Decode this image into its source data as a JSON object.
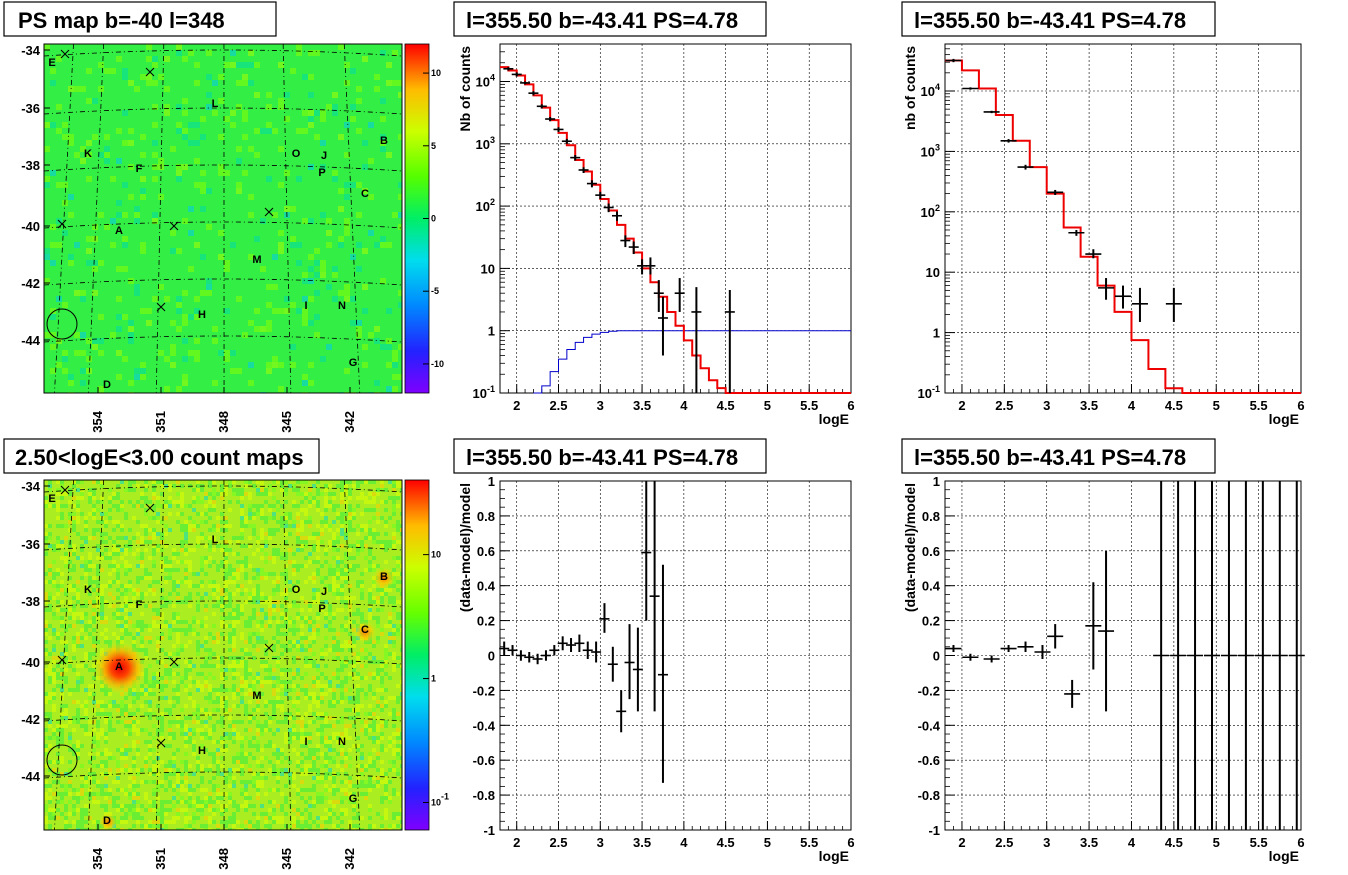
{
  "chart_data": [
    {
      "panel": "ps-map",
      "type": "heatmap",
      "title": "PS map b=-40 l=348",
      "x_ticks": [
        "354",
        "351",
        "348",
        "345",
        "342"
      ],
      "y_ticks": [
        "-34",
        "-36",
        "-38",
        "-40",
        "-42",
        "-44"
      ],
      "colorbar_ticks": [
        "10",
        "5",
        "0",
        "-5",
        "-10"
      ],
      "colorbar_values": [
        10,
        5,
        0,
        -5,
        -10
      ],
      "zlim": [
        -12,
        12
      ],
      "sources": [
        "E",
        "L",
        "K",
        "F",
        "O",
        "J",
        "B",
        "P",
        "C",
        "A",
        "M",
        "I",
        "N",
        "H",
        "G",
        "D"
      ],
      "crosses": 6,
      "circle": true
    },
    {
      "panel": "spectrum-left",
      "type": "line",
      "title": "l=355.50 b=-43.41 PS=4.78",
      "xlabel": "logE",
      "ylabel": "Nb of counts",
      "xlim": [
        1.8,
        6
      ],
      "ylim": [
        0.1,
        40000
      ],
      "yscale": "log",
      "x_ticks": [
        "2",
        "2.5",
        "3",
        "3.5",
        "4",
        "4.5",
        "5",
        "5.5",
        "6"
      ],
      "y_ticks": [
        "10^-1",
        "1",
        "10",
        "10^2",
        "10^3",
        "10^4"
      ],
      "grid": true,
      "data_points": [
        {
          "x": 1.9,
          "y": 16000,
          "lo": 15000,
          "hi": 17000
        },
        {
          "x": 2.0,
          "y": 13000,
          "lo": 12000,
          "hi": 14000
        },
        {
          "x": 2.1,
          "y": 9500,
          "lo": 9000,
          "hi": 10000
        },
        {
          "x": 2.2,
          "y": 6500,
          "lo": 6000,
          "hi": 7000
        },
        {
          "x": 2.3,
          "y": 4000,
          "lo": 3700,
          "hi": 4300
        },
        {
          "x": 2.4,
          "y": 2500,
          "lo": 2300,
          "hi": 2700
        },
        {
          "x": 2.5,
          "y": 1700,
          "lo": 1550,
          "hi": 1850
        },
        {
          "x": 2.6,
          "y": 1100,
          "lo": 1000,
          "hi": 1200
        },
        {
          "x": 2.7,
          "y": 600,
          "lo": 540,
          "hi": 660
        },
        {
          "x": 2.8,
          "y": 380,
          "lo": 340,
          "hi": 420
        },
        {
          "x": 2.9,
          "y": 230,
          "lo": 200,
          "hi": 260
        },
        {
          "x": 3.0,
          "y": 150,
          "lo": 130,
          "hi": 170
        },
        {
          "x": 3.1,
          "y": 95,
          "lo": 80,
          "hi": 110
        },
        {
          "x": 3.2,
          "y": 70,
          "lo": 58,
          "hi": 82
        },
        {
          "x": 3.3,
          "y": 28,
          "lo": 22,
          "hi": 34
        },
        {
          "x": 3.4,
          "y": 22,
          "lo": 17,
          "hi": 27
        },
        {
          "x": 3.5,
          "y": 11,
          "lo": 8,
          "hi": 14
        },
        {
          "x": 3.6,
          "y": 11,
          "lo": 8,
          "hi": 15
        },
        {
          "x": 3.7,
          "y": 4,
          "lo": 2,
          "hi": 6.5
        },
        {
          "x": 3.75,
          "y": 1.6,
          "lo": 0.4,
          "hi": 3.5
        },
        {
          "x": 3.95,
          "y": 4,
          "lo": 2,
          "hi": 7
        },
        {
          "x": 4.15,
          "y": 2,
          "lo": 0.1,
          "hi": 5
        },
        {
          "x": 4.55,
          "y": 2,
          "lo": 0.1,
          "hi": 4.5
        }
      ],
      "series": [
        {
          "x": [
            1.8,
            1.9,
            2.0,
            2.1,
            2.2,
            2.3,
            2.4,
            2.5,
            2.6,
            2.7,
            2.8,
            2.9,
            3.0,
            3.1,
            3.2,
            3.3,
            3.4,
            3.5,
            3.6,
            3.7,
            3.8,
            3.9,
            4.0,
            4.1,
            4.2,
            4.3,
            4.4,
            4.5,
            4.6,
            5.0,
            6.0
          ],
          "y": [
            17000,
            15000,
            12500,
            9000,
            6000,
            3800,
            2400,
            1500,
            950,
            550,
            360,
            220,
            130,
            85,
            50,
            30,
            18,
            10,
            6,
            3.5,
            2,
            1.2,
            0.7,
            0.4,
            0.25,
            0.16,
            0.12,
            0.1,
            0.1,
            0.1,
            0.1
          ]
        },
        {
          "x": [
            2.2,
            2.3,
            2.4,
            2.5,
            2.6,
            2.7,
            2.8,
            2.9,
            3.0,
            3.1,
            3.2,
            3.5,
            6.0
          ],
          "y": [
            0.1,
            0.13,
            0.22,
            0.35,
            0.5,
            0.65,
            0.78,
            0.88,
            0.94,
            0.98,
            1,
            1,
            1
          ]
        }
      ]
    },
    {
      "panel": "spectrum-right",
      "type": "line",
      "title": "l=355.50 b=-43.41 PS=4.78",
      "xlabel": "logE",
      "ylabel": "nb of counts",
      "xlim": [
        1.8,
        6
      ],
      "ylim": [
        0.1,
        60000
      ],
      "yscale": "log",
      "x_ticks": [
        "2",
        "2.5",
        "3",
        "3.5",
        "4",
        "4.5",
        "5",
        "5.5",
        "6"
      ],
      "y_ticks": [
        "10^-1",
        "1",
        "10",
        "10^2",
        "10^3",
        "10^4"
      ],
      "grid": true,
      "data_points": [
        {
          "x": 1.9,
          "y": 32000,
          "lo": 30000,
          "hi": 34000
        },
        {
          "x": 2.1,
          "y": 11000,
          "lo": 10500,
          "hi": 11500
        },
        {
          "x": 2.35,
          "y": 4500,
          "lo": 4300,
          "hi": 4700
        },
        {
          "x": 2.55,
          "y": 1500,
          "lo": 1400,
          "hi": 1600
        },
        {
          "x": 2.75,
          "y": 550,
          "lo": 500,
          "hi": 600
        },
        {
          "x": 3.1,
          "y": 210,
          "lo": 190,
          "hi": 230
        },
        {
          "x": 3.35,
          "y": 45,
          "lo": 40,
          "hi": 50
        },
        {
          "x": 3.55,
          "y": 20,
          "lo": 17,
          "hi": 24
        },
        {
          "x": 3.7,
          "y": 5.5,
          "lo": 3.5,
          "hi": 8
        },
        {
          "x": 3.9,
          "y": 4,
          "lo": 2.5,
          "hi": 6
        },
        {
          "x": 4.1,
          "y": 3,
          "lo": 1.5,
          "hi": 5.5
        },
        {
          "x": 4.5,
          "y": 3,
          "lo": 1.5,
          "hi": 5.5
        }
      ],
      "series": [
        {
          "x": [
            1.8,
            2.0,
            2.2,
            2.4,
            2.6,
            2.8,
            3.0,
            3.2,
            3.4,
            3.6,
            3.8,
            4.0,
            4.2,
            4.4,
            4.6,
            6.0
          ],
          "y": [
            32000,
            22000,
            11000,
            4000,
            1500,
            550,
            200,
            55,
            18,
            6,
            2.2,
            0.75,
            0.25,
            0.12,
            0.1,
            0.1
          ]
        }
      ]
    },
    {
      "panel": "count-map",
      "type": "heatmap",
      "title": "2.50<logE<3.00 count maps",
      "x_ticks": [
        "354",
        "351",
        "348",
        "345",
        "342"
      ],
      "y_ticks": [
        "-34",
        "-36",
        "-38",
        "-40",
        "-42",
        "-44"
      ],
      "colorbar_ticks": [
        "10",
        "1",
        "10^-1"
      ],
      "colorbar_values": [
        10,
        1,
        0.1
      ],
      "zscale": "log",
      "zlim": [
        0.06,
        40
      ],
      "sources": [
        "E",
        "L",
        "K",
        "F",
        "O",
        "J",
        "B",
        "P",
        "C",
        "A",
        "M",
        "I",
        "N",
        "H",
        "G",
        "D"
      ],
      "crosses": 6,
      "circle": true
    },
    {
      "panel": "residual-left",
      "type": "scatter",
      "title": "l=355.50 b=-43.41 PS=4.78",
      "xlabel": "logE",
      "ylabel": "(data-model)/model",
      "xlim": [
        1.8,
        6
      ],
      "ylim": [
        -1,
        1
      ],
      "x_ticks": [
        "2",
        "2.5",
        "3",
        "3.5",
        "4",
        "4.5",
        "5",
        "5.5",
        "6"
      ],
      "y_ticks": [
        "-1",
        "-0.8",
        "-0.6",
        "-0.4",
        "-0.2",
        "0",
        "0.2",
        "0.4",
        "0.6",
        "0.8",
        "1"
      ],
      "grid": true,
      "data_points": [
        {
          "x": 1.85,
          "y": 0.04,
          "lo": 0.0,
          "hi": 0.08
        },
        {
          "x": 1.95,
          "y": 0.03,
          "lo": 0.0,
          "hi": 0.06
        },
        {
          "x": 2.05,
          "y": 0.0,
          "lo": -0.03,
          "hi": 0.03
        },
        {
          "x": 2.15,
          "y": -0.01,
          "lo": -0.04,
          "hi": 0.02
        },
        {
          "x": 2.25,
          "y": -0.02,
          "lo": -0.05,
          "hi": 0.01
        },
        {
          "x": 2.35,
          "y": 0.0,
          "lo": -0.03,
          "hi": 0.03
        },
        {
          "x": 2.45,
          "y": 0.03,
          "lo": 0.0,
          "hi": 0.06
        },
        {
          "x": 2.55,
          "y": 0.07,
          "lo": 0.03,
          "hi": 0.11
        },
        {
          "x": 2.65,
          "y": 0.06,
          "lo": 0.02,
          "hi": 0.1
        },
        {
          "x": 2.75,
          "y": 0.07,
          "lo": 0.02,
          "hi": 0.12
        },
        {
          "x": 2.85,
          "y": 0.03,
          "lo": -0.02,
          "hi": 0.08
        },
        {
          "x": 2.95,
          "y": 0.02,
          "lo": -0.04,
          "hi": 0.08
        },
        {
          "x": 3.05,
          "y": 0.21,
          "lo": 0.13,
          "hi": 0.3
        },
        {
          "x": 3.15,
          "y": -0.05,
          "lo": -0.15,
          "hi": 0.05
        },
        {
          "x": 3.25,
          "y": -0.32,
          "lo": -0.44,
          "hi": -0.2
        },
        {
          "x": 3.35,
          "y": -0.04,
          "lo": -0.25,
          "hi": 0.18
        },
        {
          "x": 3.45,
          "y": -0.08,
          "lo": -0.32,
          "hi": 0.16
        },
        {
          "x": 3.55,
          "y": 0.59,
          "lo": 0.2,
          "hi": 1.0
        },
        {
          "x": 3.65,
          "y": 0.34,
          "lo": -0.32,
          "hi": 1.0
        },
        {
          "x": 3.75,
          "y": -0.11,
          "lo": -0.73,
          "hi": 0.52
        }
      ]
    },
    {
      "panel": "residual-right",
      "type": "scatter",
      "title": "l=355.50 b=-43.41 PS=4.78",
      "xlabel": "logE",
      "ylabel": "(data-model)/model",
      "xlim": [
        1.8,
        6
      ],
      "ylim": [
        -1,
        1
      ],
      "x_ticks": [
        "2",
        "2.5",
        "3",
        "3.5",
        "4",
        "4.5",
        "5",
        "5.5",
        "6"
      ],
      "y_ticks": [
        "-1",
        "-0.8",
        "-0.6",
        "-0.4",
        "-0.2",
        "0",
        "0.2",
        "0.4",
        "0.6",
        "0.8",
        "1"
      ],
      "grid": true,
      "data_points": [
        {
          "x": 1.9,
          "y": 0.04,
          "lo": 0.02,
          "hi": 0.06
        },
        {
          "x": 2.1,
          "y": -0.01,
          "lo": -0.03,
          "hi": 0.01
        },
        {
          "x": 2.35,
          "y": -0.02,
          "lo": -0.04,
          "hi": 0.0
        },
        {
          "x": 2.55,
          "y": 0.04,
          "lo": 0.02,
          "hi": 0.06
        },
        {
          "x": 2.75,
          "y": 0.05,
          "lo": 0.02,
          "hi": 0.08
        },
        {
          "x": 2.95,
          "y": 0.02,
          "lo": -0.02,
          "hi": 0.06
        },
        {
          "x": 3.1,
          "y": 0.11,
          "lo": 0.04,
          "hi": 0.18
        },
        {
          "x": 3.3,
          "y": -0.22,
          "lo": -0.3,
          "hi": -0.14
        },
        {
          "x": 3.55,
          "y": 0.17,
          "lo": -0.08,
          "hi": 0.42
        },
        {
          "x": 3.7,
          "y": 0.14,
          "lo": -0.32,
          "hi": 0.6
        },
        {
          "x": 4.35,
          "y": 0.0,
          "lo": -1.0,
          "hi": 1.0
        },
        {
          "x": 4.55,
          "y": 0.0,
          "lo": -1.0,
          "hi": 1.0
        },
        {
          "x": 4.75,
          "y": 0.0,
          "lo": -1.0,
          "hi": 1.0
        },
        {
          "x": 4.95,
          "y": 0.0,
          "lo": -1.0,
          "hi": 1.0
        },
        {
          "x": 5.15,
          "y": 0.0,
          "lo": -1.0,
          "hi": 1.0
        },
        {
          "x": 5.35,
          "y": 0.0,
          "lo": -1.0,
          "hi": 1.0
        },
        {
          "x": 5.55,
          "y": 0.0,
          "lo": -1.0,
          "hi": 1.0
        },
        {
          "x": 5.75,
          "y": 0.0,
          "lo": -1.0,
          "hi": 1.0
        },
        {
          "x": 5.95,
          "y": 0.0,
          "lo": -1.0,
          "hi": 1.0
        }
      ]
    }
  ]
}
